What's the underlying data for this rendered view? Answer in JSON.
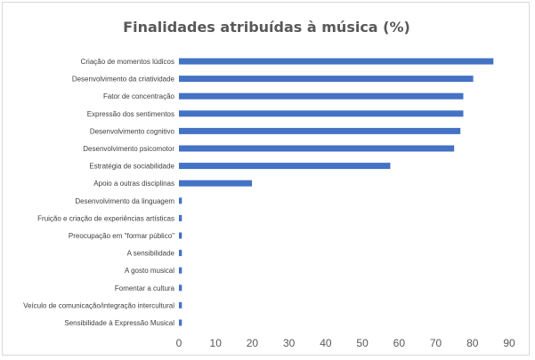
{
  "chart_data": {
    "type": "bar",
    "orientation": "horizontal",
    "title": "Finalidades atribuídas à música (%)",
    "xlabel": "",
    "ylabel": "",
    "xlim": [
      0,
      90
    ],
    "x_ticks": [
      "0",
      "10",
      "20",
      "30",
      "40",
      "50",
      "60",
      "70",
      "80",
      "90"
    ],
    "grid": false,
    "legend": "none",
    "bar_color": "#4472c4",
    "categories": [
      "Criação de momentos lúdicos",
      "Desenvolvimento da criatividade",
      "Fator de concentração",
      "Expressão dos sentimentos",
      "Desenvolvimento cognitivo",
      "Desenvolvimento psicomotor",
      "Estratégia de sociabilidade",
      "Apoio a outras disciplinas",
      "Desenvolvimento da linguagem",
      "Fruição e criação de experiências artísticas",
      "Preocupação em \"formar público\"",
      "A sensibilidade",
      "A gosto musical",
      "Fomentar a cultura",
      "Veículo de comunicação/integração intercultural",
      "Sensibilidade à Expressão Musical"
    ],
    "values": [
      85.7,
      80.2,
      77.5,
      77.5,
      76.7,
      75.0,
      57.6,
      19.9,
      0.8,
      0.8,
      0.8,
      0.8,
      0.8,
      0.8,
      0.8,
      0.8
    ]
  }
}
